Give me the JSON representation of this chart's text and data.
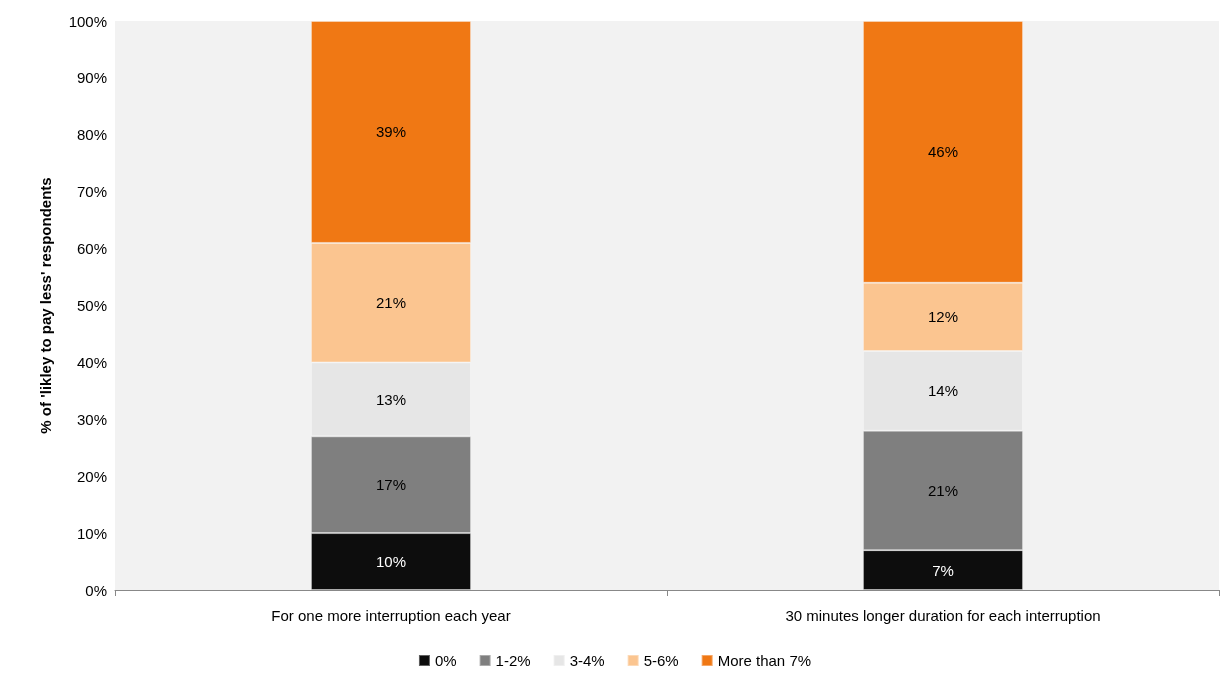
{
  "chart_data": {
    "type": "bar",
    "stacked": true,
    "ylabel": "% of 'likley to pay less' respondents",
    "categories": [
      "For one more interruption each year",
      "30 minutes longer duration for each interruption"
    ],
    "series": [
      {
        "name": "0%",
        "color": "#0d0d0d",
        "values": [
          10,
          7
        ],
        "value_labels": [
          "10%",
          "7%"
        ]
      },
      {
        "name": "1-2%",
        "color": "#7f7f7f",
        "values": [
          17,
          21
        ],
        "value_labels": [
          "17%",
          "21%"
        ]
      },
      {
        "name": "3-4%",
        "color": "#e6e6e6",
        "values": [
          13,
          14
        ],
        "value_labels": [
          "13%",
          "14%"
        ]
      },
      {
        "name": "5-6%",
        "color": "#fbc590",
        "values": [
          21,
          12
        ],
        "value_labels": [
          "21%",
          "12%"
        ]
      },
      {
        "name": "More than 7%",
        "color": "#f07814",
        "values": [
          39,
          46
        ],
        "value_labels": [
          "39%",
          "46%"
        ]
      }
    ],
    "ylim": [
      0,
      100
    ],
    "yticks": [
      {
        "value": 0,
        "label": "0%"
      },
      {
        "value": 10,
        "label": "10%"
      },
      {
        "value": 20,
        "label": "20%"
      },
      {
        "value": 30,
        "label": "30%"
      },
      {
        "value": 40,
        "label": "40%"
      },
      {
        "value": 50,
        "label": "50%"
      },
      {
        "value": 60,
        "label": "60%"
      },
      {
        "value": 70,
        "label": "70%"
      },
      {
        "value": 80,
        "label": "80%"
      },
      {
        "value": 90,
        "label": "90%"
      },
      {
        "value": 100,
        "label": "100%"
      }
    ],
    "grid": false,
    "legend": "bottom"
  }
}
